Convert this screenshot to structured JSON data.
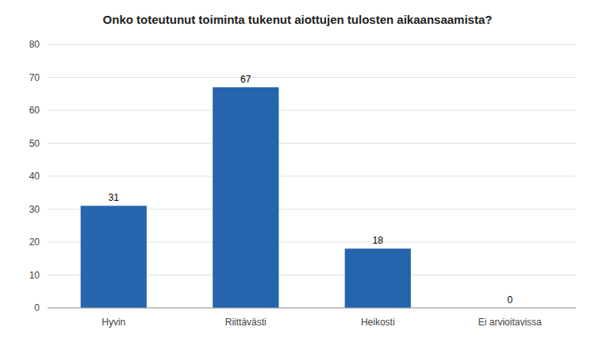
{
  "chart_data": {
    "type": "bar",
    "title": "Onko toteutunut toiminta tukenut aiottujen tulosten aikaansaamista?",
    "categories": [
      "Hyvin",
      "Riittävästi",
      "Heikosti",
      "Ei arvioitavissa"
    ],
    "values": [
      31,
      67,
      18,
      0
    ],
    "color": "#2565ae",
    "ylim": [
      0,
      80
    ],
    "yticks": [
      0,
      10,
      20,
      30,
      40,
      50,
      60,
      70,
      80
    ],
    "grid": true,
    "data_labels": true
  }
}
